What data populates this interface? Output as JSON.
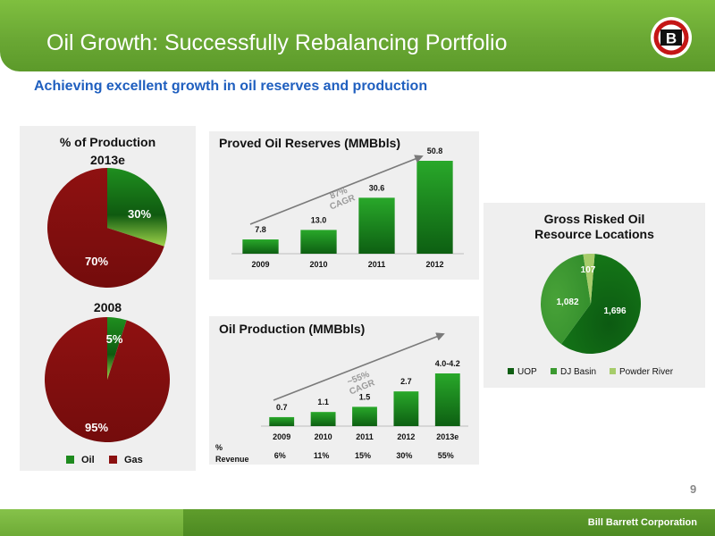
{
  "header": {
    "title": "Oil Growth: Successfully Rebalancing Portfolio",
    "logo_letter": "B"
  },
  "subtitle": "Achieving excellent growth in oil reserves and production",
  "page_number": "9",
  "footer": {
    "company": "Bill Barrett Corporation"
  },
  "colors": {
    "oil": "#1e8a1e",
    "gas": "#8b1010",
    "powder_river": "#a6cc6a",
    "accent": "#1f5fbf"
  },
  "chart_data": [
    {
      "id": "production_2013e",
      "type": "pie",
      "title": "% of Production",
      "subtitle": "2013e",
      "slices": [
        {
          "name": "Oil",
          "value": 30,
          "label": "30%"
        },
        {
          "name": "Gas",
          "value": 70,
          "label": "70%"
        }
      ]
    },
    {
      "id": "production_2008",
      "type": "pie",
      "title": "2008",
      "slices": [
        {
          "name": "Oil",
          "value": 5,
          "label": "5%"
        },
        {
          "name": "Gas",
          "value": 95,
          "label": "95%"
        }
      ],
      "legend": [
        "Oil",
        "Gas"
      ]
    },
    {
      "id": "proved_reserves",
      "type": "bar",
      "title": "Proved Oil Reserves (MMBbls)",
      "categories": [
        "2009",
        "2010",
        "2011",
        "2012"
      ],
      "values": [
        7.8,
        13.0,
        30.6,
        50.8
      ],
      "labels": [
        "7.8",
        "13.0",
        "30.6",
        "50.8"
      ],
      "annotation": "87% CAGR"
    },
    {
      "id": "oil_production",
      "type": "bar",
      "title": "Oil Production (MMBbls)",
      "categories": [
        "2009",
        "2010",
        "2011",
        "2012",
        "2013e"
      ],
      "values": [
        0.7,
        1.1,
        1.5,
        2.7,
        4.1
      ],
      "labels": [
        "0.7",
        "1.1",
        "1.5",
        "2.7",
        "4.0-4.2"
      ],
      "annotation": "~55% CAGR",
      "revenue_label": "% Revenue",
      "revenue_percent": [
        "6%",
        "11%",
        "15%",
        "30%",
        "55%"
      ]
    },
    {
      "id": "risked_locations",
      "type": "pie",
      "title": "Gross Risked Oil Resource Locations",
      "slices": [
        {
          "name": "UOP",
          "value": 1696,
          "label": "1,696"
        },
        {
          "name": "DJ Basin",
          "value": 1082,
          "label": "1,082"
        },
        {
          "name": "Powder River",
          "value": 107,
          "label": "107"
        }
      ],
      "legend": [
        "UOP",
        "DJ Basin",
        "Powder River"
      ]
    }
  ]
}
